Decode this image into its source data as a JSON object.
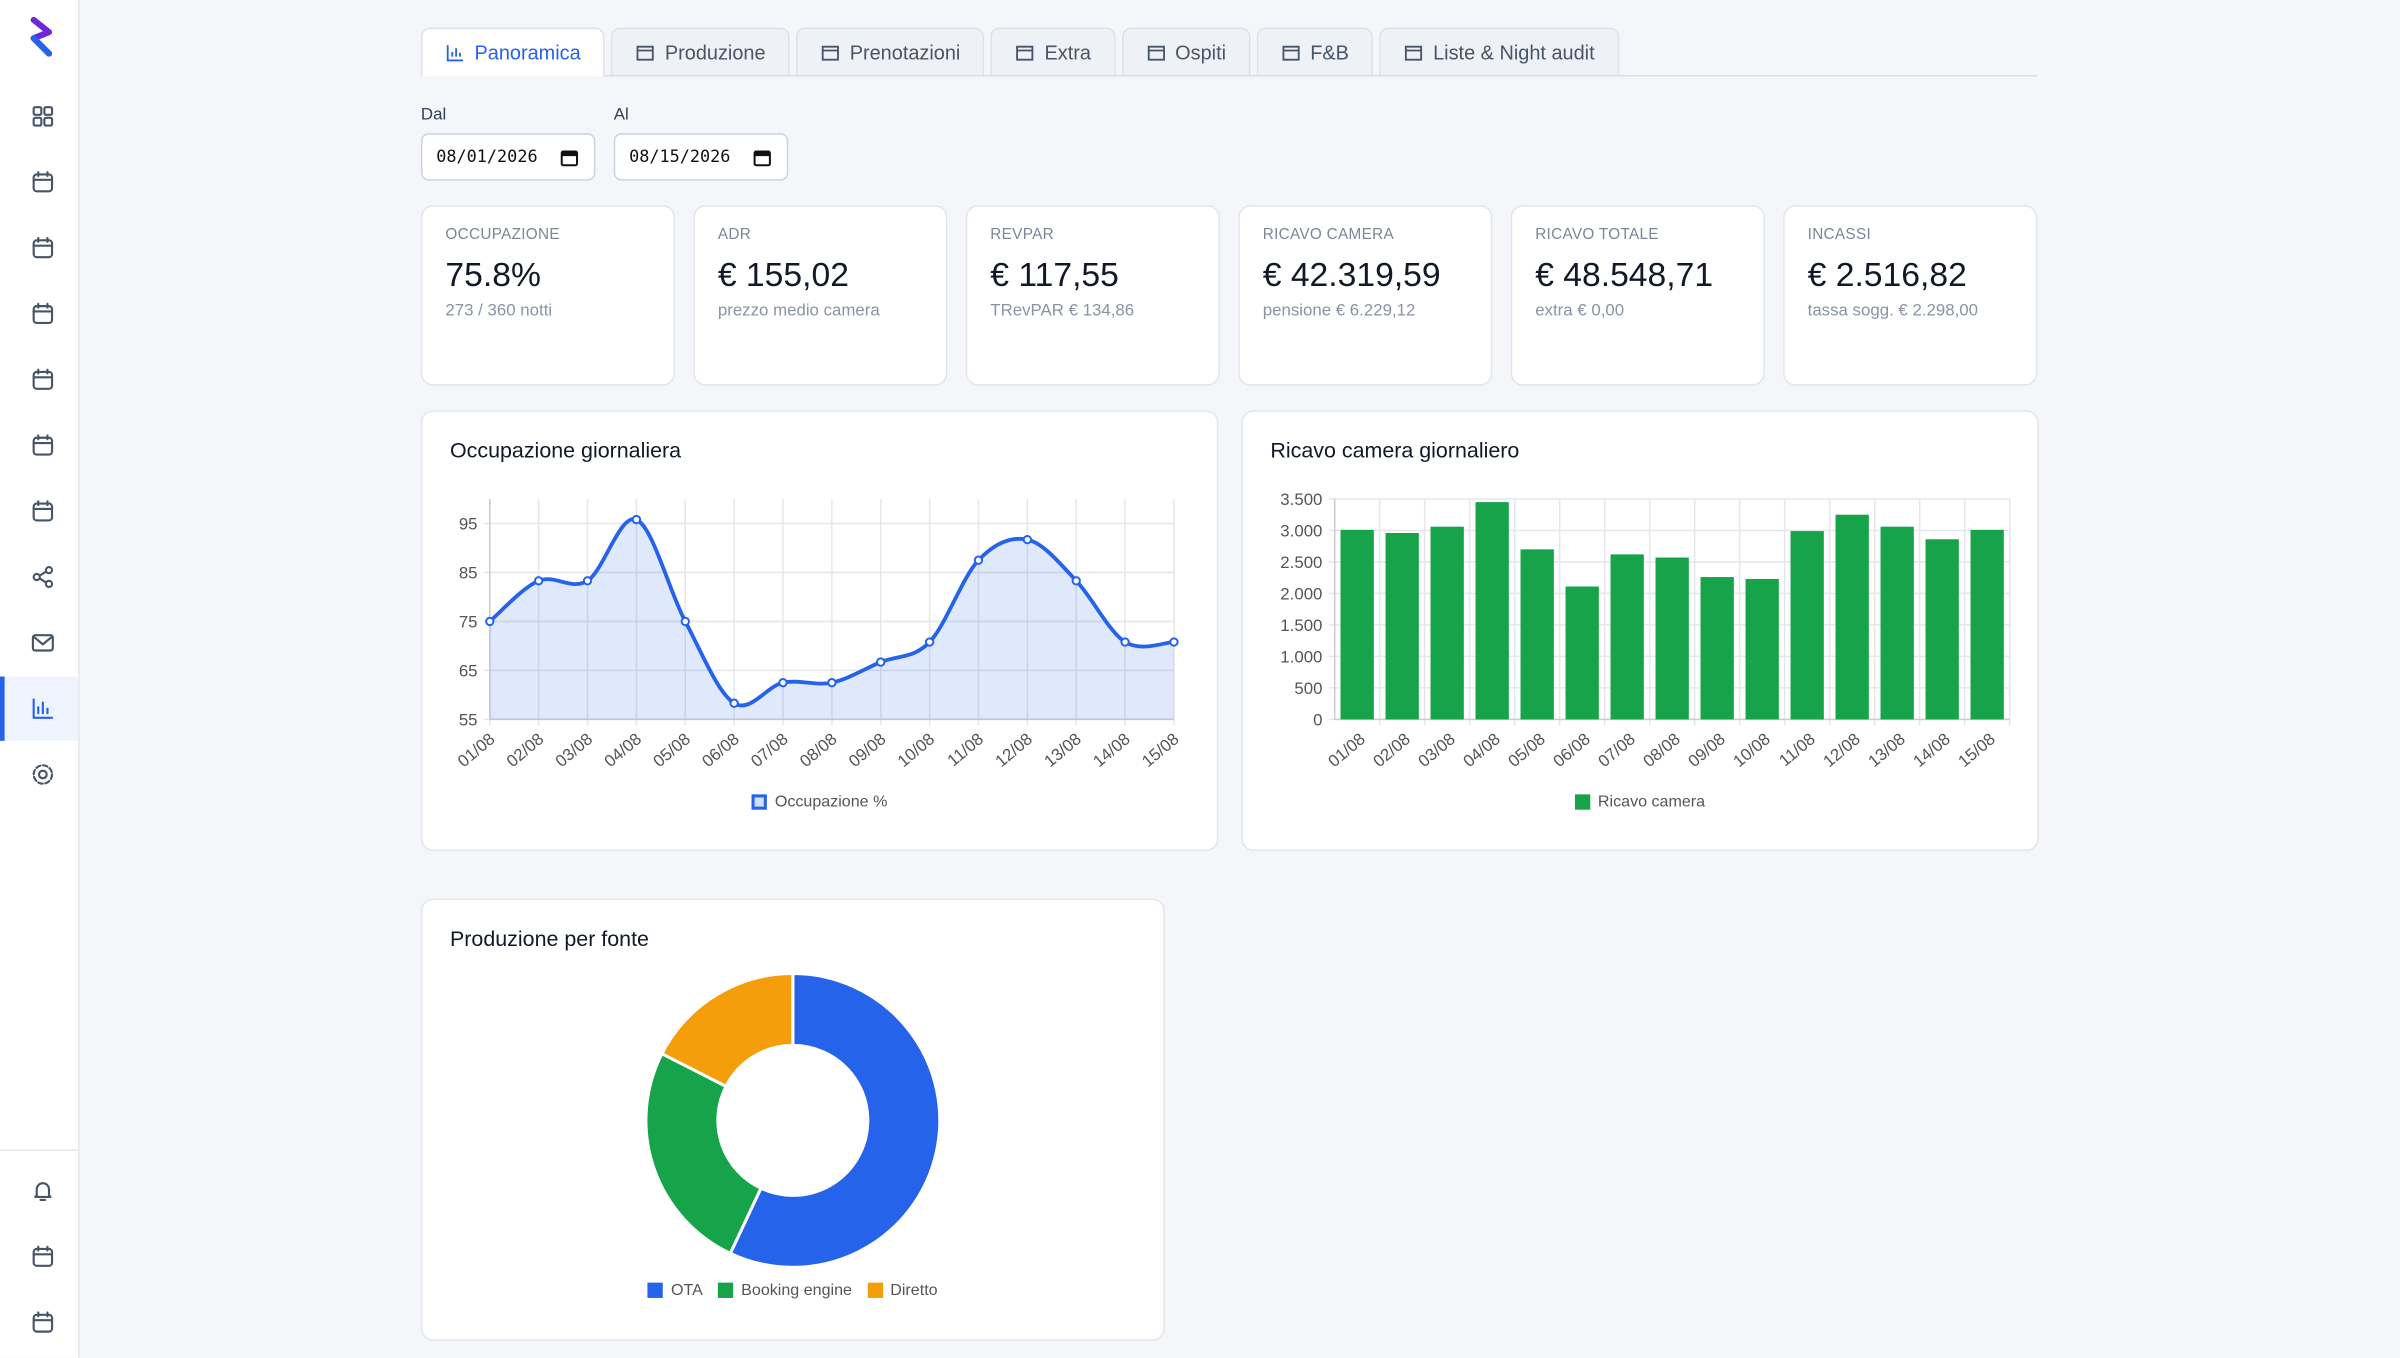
{
  "tabs": [
    "Panoramica",
    "Produzione",
    "Prenotazioni",
    "Extra",
    "Ospiti",
    "F&B",
    "Liste & Night audit"
  ],
  "filters": {
    "from_label": "Dal",
    "from_value": "08/01/2026",
    "to_label": "Al",
    "to_value": "08/15/2026"
  },
  "kpis": [
    {
      "label": "OCCUPAZIONE",
      "value": "75.8%",
      "sub": "273 / 360 notti"
    },
    {
      "label": "ADR",
      "value": "€ 155,02",
      "sub": "prezzo medio camera"
    },
    {
      "label": "REVPAR",
      "value": "€ 117,55",
      "sub": "TRevPAR € 134,86"
    },
    {
      "label": "RICAVO CAMERA",
      "value": "€ 42.319,59",
      "sub": "pensione € 6.229,12"
    },
    {
      "label": "RICAVO TOTALE",
      "value": "€ 48.548,71",
      "sub": "extra € 0,00"
    },
    {
      "label": "INCASSI",
      "value": "€ 2.516,82",
      "sub": "tassa sogg. € 2.298,00"
    }
  ],
  "chart_data": [
    {
      "type": "line",
      "title": "Occupazione giornaliera",
      "categories": [
        "01/08",
        "02/08",
        "03/08",
        "04/08",
        "05/08",
        "06/08",
        "07/08",
        "08/08",
        "09/08",
        "10/08",
        "11/08",
        "12/08",
        "13/08",
        "14/08",
        "15/08"
      ],
      "series": [
        {
          "name": "Occupazione %",
          "color": "#2563eb",
          "values": [
            75,
            83.3,
            83.3,
            95.8,
            75,
            58.3,
            62.5,
            62.5,
            66.7,
            70.8,
            87.5,
            91.7,
            83.3,
            70.8,
            70.8
          ]
        }
      ],
      "ylim": [
        55,
        100
      ],
      "yticks": [
        55,
        65,
        75,
        85,
        95
      ],
      "grid": true,
      "smooth": true,
      "legend": "bottom"
    },
    {
      "type": "bar",
      "title": "Ricavo camera giornaliero",
      "categories": [
        "01/08",
        "02/08",
        "03/08",
        "04/08",
        "05/08",
        "06/08",
        "07/08",
        "08/08",
        "09/08",
        "10/08",
        "11/08",
        "12/08",
        "13/08",
        "14/08",
        "15/08"
      ],
      "series": [
        {
          "name": "Ricavo camera",
          "color": "#16a34a",
          "values": [
            3010,
            2960,
            3060,
            3450,
            2700,
            2110,
            2620,
            2570,
            2260,
            2230,
            2990,
            3250,
            3060,
            2860,
            3010
          ]
        }
      ],
      "ylim": [
        0,
        3500
      ],
      "yticks": [
        0,
        500,
        {
          "value": 1000,
          "label": "1.000"
        },
        {
          "value": 1500,
          "label": "1.500"
        },
        {
          "value": 2000,
          "label": "2.000"
        },
        {
          "value": 2500,
          "label": "2.500"
        },
        {
          "value": 3000,
          "label": "3.000"
        },
        {
          "value": 3500,
          "label": "3.500"
        }
      ],
      "grid": true,
      "legend": "bottom"
    },
    {
      "type": "donut",
      "title": "Produzione per fonte",
      "categories": [
        "OTA",
        "Booking engine",
        "Diretto"
      ],
      "values": [
        57,
        25.5,
        17.5
      ],
      "colors": [
        "#2563eb",
        "#16a34a",
        "#f59e0b"
      ],
      "legend": "bottom"
    }
  ]
}
